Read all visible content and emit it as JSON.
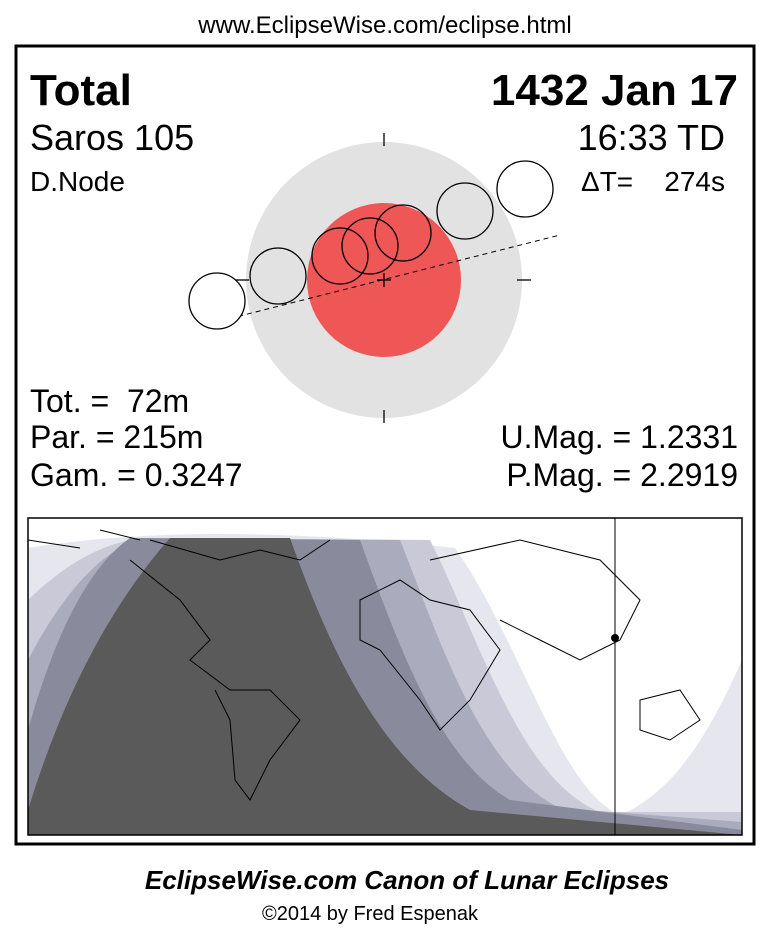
{
  "header": {
    "url": "www.EclipseWise.com/eclipse.html"
  },
  "eclipse": {
    "type": "Total",
    "date": "1432 Jan 17",
    "saros": "Saros 105",
    "time": "16:33 TD",
    "node": "D.Node",
    "delta_t": "ΔT=    274s"
  },
  "stats": {
    "totality": "Tot. =  72m",
    "partial": "Par. = 215m",
    "gamma": "Gam. = 0.3247",
    "umbral_mag": "U.Mag. = 1.2331",
    "penumbral_mag": "P.Mag. = 2.2919"
  },
  "footer": {
    "title": "EclipseWise.com Canon of Lunar Eclipses",
    "copyright": "©2014 by Fred Espenak"
  }
}
